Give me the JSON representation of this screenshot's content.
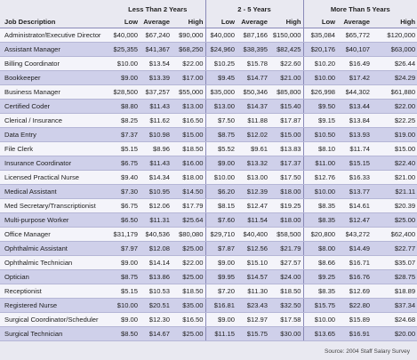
{
  "table": {
    "groups": [
      "Less Than 2 Years",
      "2 - 5 Years",
      "More Than 5 Years"
    ],
    "columns": [
      "Job Description",
      "Low",
      "Average",
      "High",
      "Low",
      "Average",
      "High",
      "Low",
      "Average",
      "High"
    ],
    "rows": [
      [
        "Administrator/Executive Director",
        "$40,000",
        "$67,240",
        "$90,000",
        "$40,000",
        "$87,166",
        "$150,000",
        "$35,084",
        "$65,772",
        "$120,000"
      ],
      [
        "Assistant Manager",
        "$25,355",
        "$41,367",
        "$68,250",
        "$24,960",
        "$38,395",
        "$82,425",
        "$20,176",
        "$40,107",
        "$63,000"
      ],
      [
        "Billing Coordinator",
        "$10.00",
        "$13.54",
        "$22.00",
        "$10.25",
        "$15.78",
        "$22.60",
        "$10.20",
        "$16.49",
        "$26.44"
      ],
      [
        "Bookkeeper",
        "$9.00",
        "$13.39",
        "$17.00",
        "$9.45",
        "$14.77",
        "$21.00",
        "$10.00",
        "$17.42",
        "$24.29"
      ],
      [
        "Business Manager",
        "$28,500",
        "$37,257",
        "$55,000",
        "$35,000",
        "$50,346",
        "$85,800",
        "$26,998",
        "$44,302",
        "$61,880"
      ],
      [
        "Certified Coder",
        "$8.80",
        "$11.43",
        "$13.00",
        "$13.00",
        "$14.37",
        "$15.40",
        "$9.50",
        "$13.44",
        "$22.00"
      ],
      [
        "Clerical / Insurance",
        "$8.25",
        "$11.62",
        "$16.50",
        "$7.50",
        "$11.88",
        "$17.87",
        "$9.15",
        "$13.84",
        "$22.25"
      ],
      [
        "Data Entry",
        "$7.37",
        "$10.98",
        "$15.00",
        "$8.75",
        "$12.02",
        "$15.00",
        "$10.50",
        "$13.93",
        "$19.00"
      ],
      [
        "File Clerk",
        "$5.15",
        "$8.96",
        "$18.50",
        "$5.52",
        "$9.61",
        "$13.83",
        "$8.10",
        "$11.74",
        "$15.00"
      ],
      [
        "Insurance Coordinator",
        "$6.75",
        "$11.43",
        "$16.00",
        "$9.00",
        "$13.32",
        "$17.37",
        "$11.00",
        "$15.15",
        "$22.40"
      ],
      [
        "Licensed Practical Nurse",
        "$9.40",
        "$14.34",
        "$18.00",
        "$10.00",
        "$13.00",
        "$17.50",
        "$12.76",
        "$16.33",
        "$21.00"
      ],
      [
        "Medical Assistant",
        "$7.30",
        "$10.95",
        "$14.50",
        "$6.20",
        "$12.39",
        "$18.00",
        "$10.00",
        "$13.77",
        "$21.11"
      ],
      [
        "Med Secretary/Transcriptionist",
        "$6.75",
        "$12.06",
        "$17.79",
        "$8.15",
        "$12.47",
        "$19.25",
        "$8.35",
        "$14.61",
        "$20.39"
      ],
      [
        "Multi-purpose Worker",
        "$6.50",
        "$11.31",
        "$25.64",
        "$7.60",
        "$11.54",
        "$18.00",
        "$8.35",
        "$12.47",
        "$25.00"
      ],
      [
        "Office Manager",
        "$31,179",
        "$40,536",
        "$80,080",
        "$29,710",
        "$40,400",
        "$58,500",
        "$20,800",
        "$43,272",
        "$62,400"
      ],
      [
        "Ophthalmic Assistant",
        "$7.97",
        "$12.08",
        "$25.00",
        "$7.87",
        "$12.56",
        "$21.79",
        "$8.00",
        "$14.49",
        "$22.77"
      ],
      [
        "Ophthalmic Technician",
        "$9.00",
        "$14.14",
        "$22.00",
        "$9.00",
        "$15.10",
        "$27.57",
        "$8.66",
        "$16.71",
        "$35.07"
      ],
      [
        "Optician",
        "$8.75",
        "$13.86",
        "$25.00",
        "$9.95",
        "$14.57",
        "$24.00",
        "$9.25",
        "$16.76",
        "$28.75"
      ],
      [
        "Receptionist",
        "$5.15",
        "$10.53",
        "$18.50",
        "$7.20",
        "$11.30",
        "$18.50",
        "$8.35",
        "$12.69",
        "$18.89"
      ],
      [
        "Registered Nurse",
        "$10.00",
        "$20.51",
        "$35.00",
        "$16.81",
        "$23.43",
        "$32.50",
        "$15.75",
        "$22.80",
        "$37.34"
      ],
      [
        "Surgical Coordinator/Scheduler",
        "$9.00",
        "$12.30",
        "$16.50",
        "$9.00",
        "$12.97",
        "$17.58",
        "$10.00",
        "$15.89",
        "$24.68"
      ],
      [
        "Surgical Technician",
        "$8.50",
        "$14.67",
        "$25.00",
        "$11.15",
        "$15.75",
        "$30.00",
        "$13.65",
        "$16.91",
        "$20.00"
      ]
    ]
  },
  "source": "Source: 2004 Staff Salary Survey"
}
